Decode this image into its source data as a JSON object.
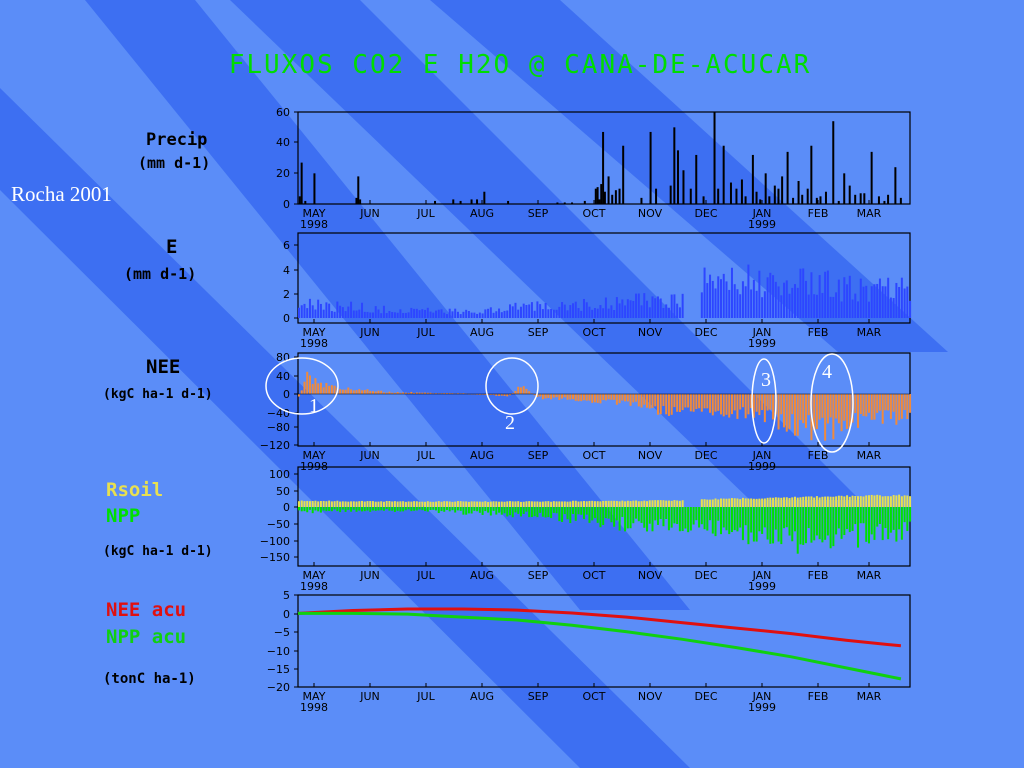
{
  "slide": {
    "title": "FLUXOS CO2 E H2O @ CANA-DE-ACUCAR",
    "citation": "Rocha 2001"
  },
  "labels": {
    "precip_l1": "Precip",
    "precip_l2": "(mm d-1)",
    "e_l1": "E",
    "e_l2": "(mm d-1)",
    "nee_l1": "NEE",
    "nee_l2": "(kgC ha-1 d-1)",
    "rsoil": "Rsoil",
    "npp": "NPP",
    "rsoil_units": "(kgC ha-1 d-1)",
    "nee_acu": "NEE acu",
    "npp_acu": "NPP acu",
    "acu_units": "(tonC ha-1)"
  },
  "annotations": [
    "1",
    "2",
    "3",
    "4"
  ],
  "colors": {
    "background": "#5b8df8",
    "stripe": "#3d6ff2",
    "precip": "#000000",
    "e": "#2d46ff",
    "nee": "#f08a3c",
    "rsoil": "#e8e050",
    "npp": "#00e000",
    "nee_acu": "#e01010",
    "npp_acu": "#10d010",
    "title": "#00dd00"
  },
  "chart_data": [
    {
      "id": "precip",
      "type": "bar",
      "ylim": [
        0,
        60
      ],
      "yticks": [
        "0",
        "20",
        "40",
        "60"
      ],
      "xticks": [
        "MAY",
        "JUN",
        "JUL",
        "AUG",
        "SEP",
        "OCT",
        "NOV",
        "DEC",
        "JAN",
        "FEB",
        "MAR"
      ],
      "xsub": [
        "1998",
        "1999"
      ],
      "days": [
        1,
        2,
        4,
        9,
        32,
        33,
        34,
        75,
        85,
        89,
        95,
        98,
        102,
        115,
        142,
        146,
        150,
        157,
        163,
        164,
        165,
        166,
        167,
        168,
        170,
        172,
        174,
        176,
        178,
        188,
        193,
        196,
        204,
        206,
        208,
        211,
        215,
        218,
        222,
        228,
        230,
        233,
        237,
        240,
        243,
        245,
        249,
        251,
        253,
        256,
        258,
        261,
        263,
        265,
        268,
        271,
        274,
        276,
        279,
        281,
        284,
        286,
        289,
        293,
        296,
        299,
        302,
        305,
        308,
        310,
        314,
        318,
        321,
        323,
        327,
        330
      ],
      "values": [
        5,
        27,
        2,
        20,
        4,
        18,
        3,
        2,
        3,
        2,
        3,
        3,
        8,
        2,
        1,
        1,
        1,
        2,
        10,
        11,
        3,
        13,
        47,
        8,
        18,
        6,
        9,
        10,
        38,
        4,
        47,
        10,
        12,
        50,
        35,
        22,
        10,
        32,
        5,
        60,
        10,
        38,
        14,
        10,
        16,
        5,
        32,
        8,
        3,
        20,
        5,
        12,
        10,
        18,
        34,
        4,
        15,
        6,
        10,
        38,
        4,
        5,
        8,
        54,
        2,
        20,
        12,
        6,
        7,
        7,
        34,
        5,
        2,
        6,
        24,
        4
      ]
    },
    {
      "id": "e",
      "type": "bar",
      "ylim": [
        0,
        7
      ],
      "yticks": [
        "0",
        "2",
        "4",
        "6"
      ],
      "xticks": [
        "MAY",
        "JUN",
        "JUL",
        "AUG",
        "SEP",
        "OCT",
        "NOV",
        "DEC",
        "JAN",
        "FEB",
        "MAR"
      ],
      "xsub": [
        "1998",
        "1999"
      ],
      "gap": [
        211,
        220
      ],
      "env_days": [
        0,
        5,
        20,
        35,
        50,
        65,
        80,
        95,
        110,
        120,
        135,
        150,
        165,
        180,
        195,
        205,
        210,
        220,
        225,
        240,
        255,
        270,
        285,
        300,
        315,
        330
      ],
      "env_values": [
        1.8,
        1.6,
        1.4,
        1.3,
        1.0,
        0.9,
        0.8,
        0.8,
        1.0,
        1.3,
        1.4,
        1.6,
        1.7,
        2.0,
        2.1,
        2.2,
        2.2,
        4.6,
        4.8,
        4.4,
        4.8,
        4.0,
        4.4,
        3.6,
        3.8,
        3.6
      ]
    },
    {
      "id": "nee",
      "type": "bar",
      "ylim": [
        -120,
        80
      ],
      "yticks": [
        "80",
        "40",
        "0",
        "−40",
        "−80",
        "−120"
      ],
      "xticks": [
        "MAY",
        "JUN",
        "JUL",
        "AUG",
        "SEP",
        "OCT",
        "NOV",
        "DEC",
        "JAN",
        "FEB",
        "MAR"
      ],
      "xsub": [
        "1998",
        "1999"
      ],
      "env_days": [
        0,
        5,
        10,
        20,
        30,
        40,
        50,
        60,
        70,
        80,
        90,
        100,
        110,
        115,
        122,
        126,
        130,
        140,
        150,
        160,
        170,
        180,
        190,
        200,
        210,
        220,
        230,
        240,
        250,
        260,
        270,
        280,
        290,
        300,
        310,
        320,
        330
      ],
      "env_values": [
        -10,
        55,
        30,
        20,
        15,
        10,
        5,
        5,
        3,
        2,
        2,
        -3,
        -5,
        -8,
        30,
        10,
        -10,
        -15,
        -15,
        -20,
        -25,
        -30,
        -40,
        -50,
        -50,
        -45,
        -55,
        -60,
        -70,
        -75,
        -90,
        -100,
        -110,
        -95,
        -80,
        -75,
        -65
      ]
    },
    {
      "id": "rsoil_npp",
      "type": "bar",
      "ylim": [
        -170,
        100
      ],
      "yticks": [
        "100",
        "50",
        "0",
        "−50",
        "−100",
        "−150"
      ],
      "xticks": [
        "MAY",
        "JUN",
        "JUL",
        "AUG",
        "SEP",
        "OCT",
        "NOV",
        "DEC",
        "JAN",
        "FEB",
        "MAR"
      ],
      "xsub": [
        "1998",
        "1999"
      ],
      "rsoil_days": [
        0,
        60,
        120,
        180,
        210,
        220,
        260,
        300,
        330
      ],
      "rsoil_values": [
        20,
        18,
        18,
        20,
        22,
        25,
        30,
        36,
        38
      ],
      "npp_env_days": [
        0,
        30,
        60,
        90,
        110,
        130,
        150,
        170,
        190,
        200,
        210,
        220,
        240,
        255,
        270,
        285,
        300,
        315,
        330
      ],
      "npp_env_values": [
        -20,
        -15,
        -15,
        -25,
        -30,
        -35,
        -50,
        -70,
        -80,
        -85,
        -90,
        -75,
        -110,
        -120,
        -140,
        -150,
        -130,
        -115,
        -110
      ]
    },
    {
      "id": "accumulated",
      "type": "line",
      "ylim": [
        -20,
        5
      ],
      "yticks": [
        "5",
        "0",
        "−5",
        "−10",
        "−15",
        "−20"
      ],
      "xticks": [
        "MAY",
        "JUN",
        "JUL",
        "AUG",
        "SEP",
        "OCT",
        "NOV",
        "DEC",
        "JAN",
        "FEB",
        "MAR"
      ],
      "xsub": [
        "1998",
        "1999"
      ],
      "series": [
        {
          "name": "NEE acu",
          "x": [
            0,
            30,
            60,
            90,
            120,
            150,
            180,
            210,
            240,
            270,
            300,
            330
          ],
          "y": [
            0,
            0.8,
            1.2,
            1.2,
            0.9,
            0.1,
            -1,
            -2.5,
            -4,
            -5.5,
            -7.3,
            -8.8
          ]
        },
        {
          "name": "NPP acu",
          "x": [
            0,
            30,
            60,
            90,
            120,
            150,
            180,
            210,
            240,
            270,
            300,
            330
          ],
          "y": [
            0,
            0,
            -0.2,
            -1,
            -1.8,
            -3.2,
            -5,
            -7,
            -9.3,
            -11.8,
            -14.8,
            -17.8
          ]
        }
      ]
    }
  ]
}
